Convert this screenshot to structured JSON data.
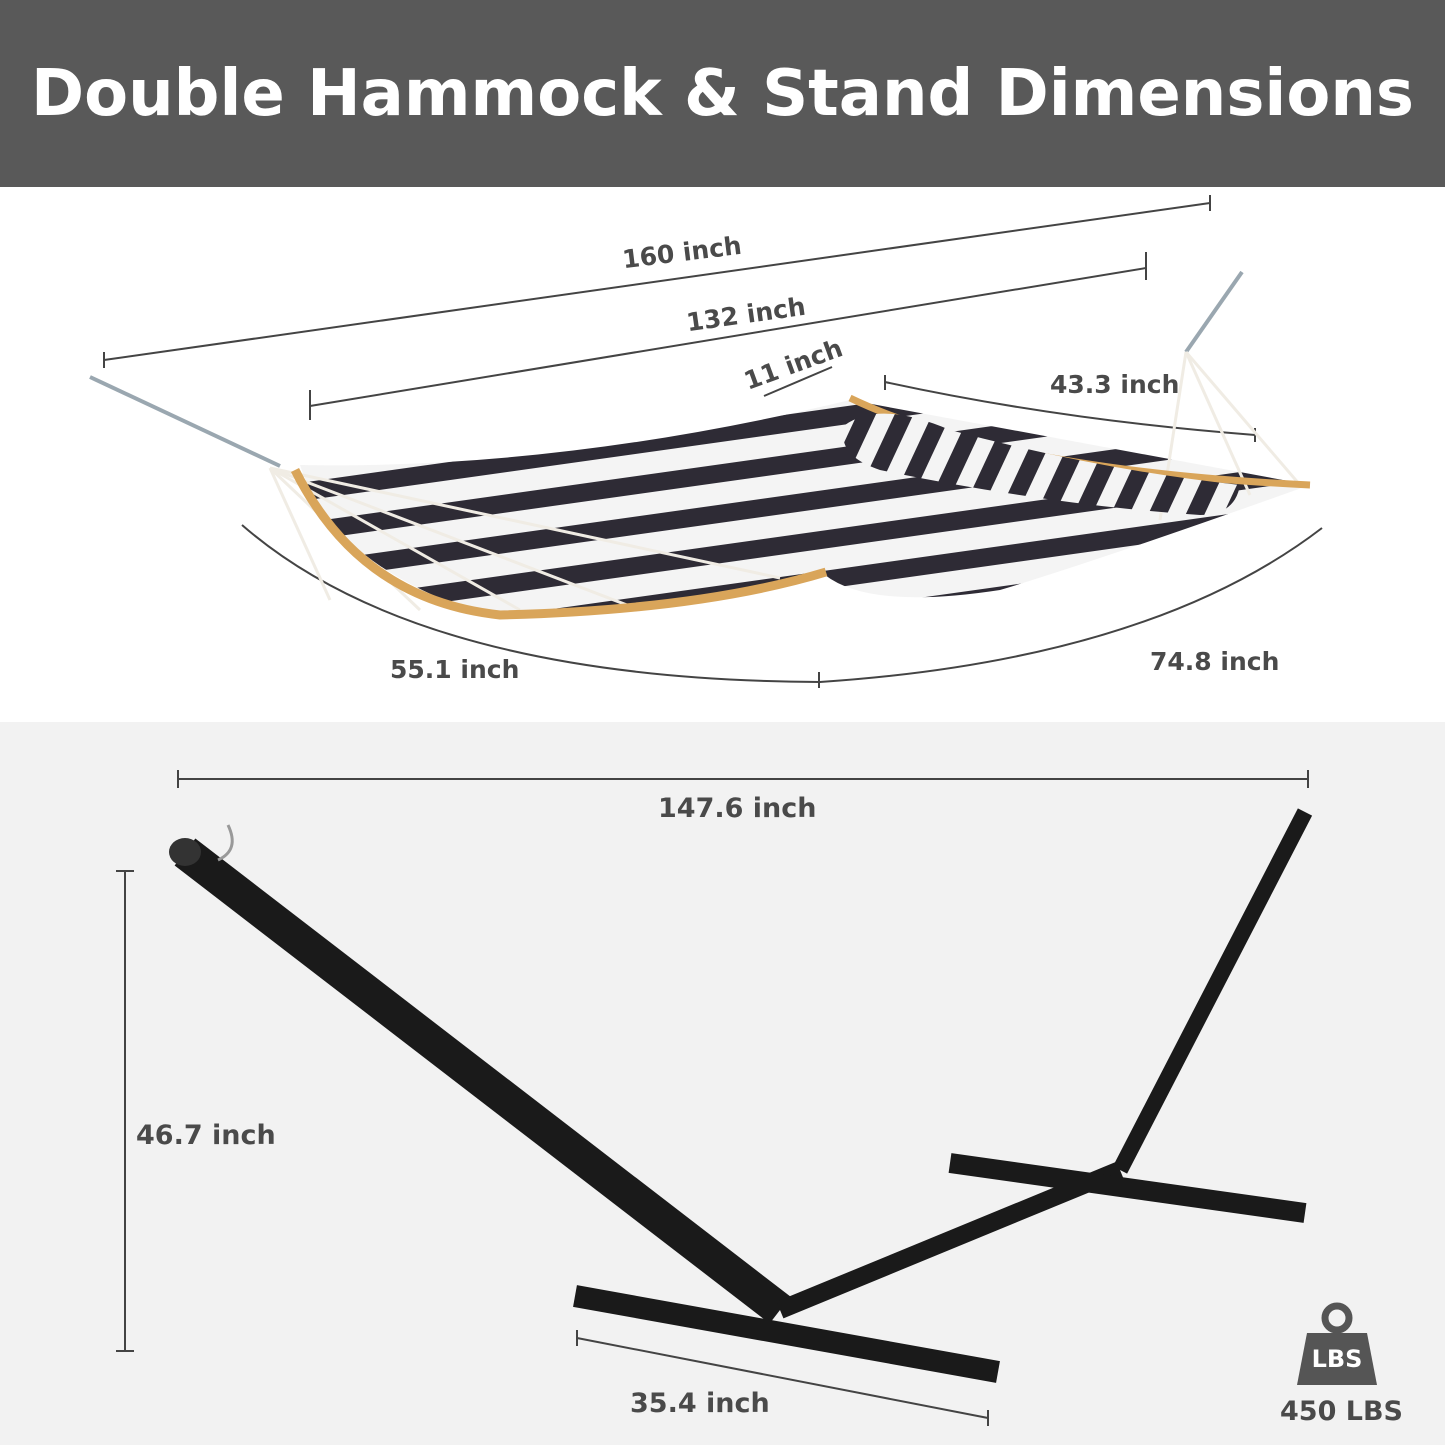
{
  "title": "Double Hammock & Stand Dimensions",
  "hammock": {
    "overall_length": "160 inch",
    "bed_length": "132 inch",
    "pillow_width": "11 inch",
    "spreader_bar_width": "43.3 inch",
    "left_curve": "55.1 inch",
    "right_curve": "74.8 inch"
  },
  "stand": {
    "length": "147.6 inch",
    "height": "46.7 inch",
    "base_width": "35.4 inch"
  },
  "capacity": {
    "icon": "weight-icon",
    "icon_text": "LBS",
    "value": "450 LBS"
  },
  "colors": {
    "header": "#595959",
    "bottom_bg": "#f2f2f2",
    "text": "#4a4a4a",
    "stand": "#1a1a1a",
    "stripe_dark": "#2e2b35",
    "wood": "#d9a55a"
  }
}
